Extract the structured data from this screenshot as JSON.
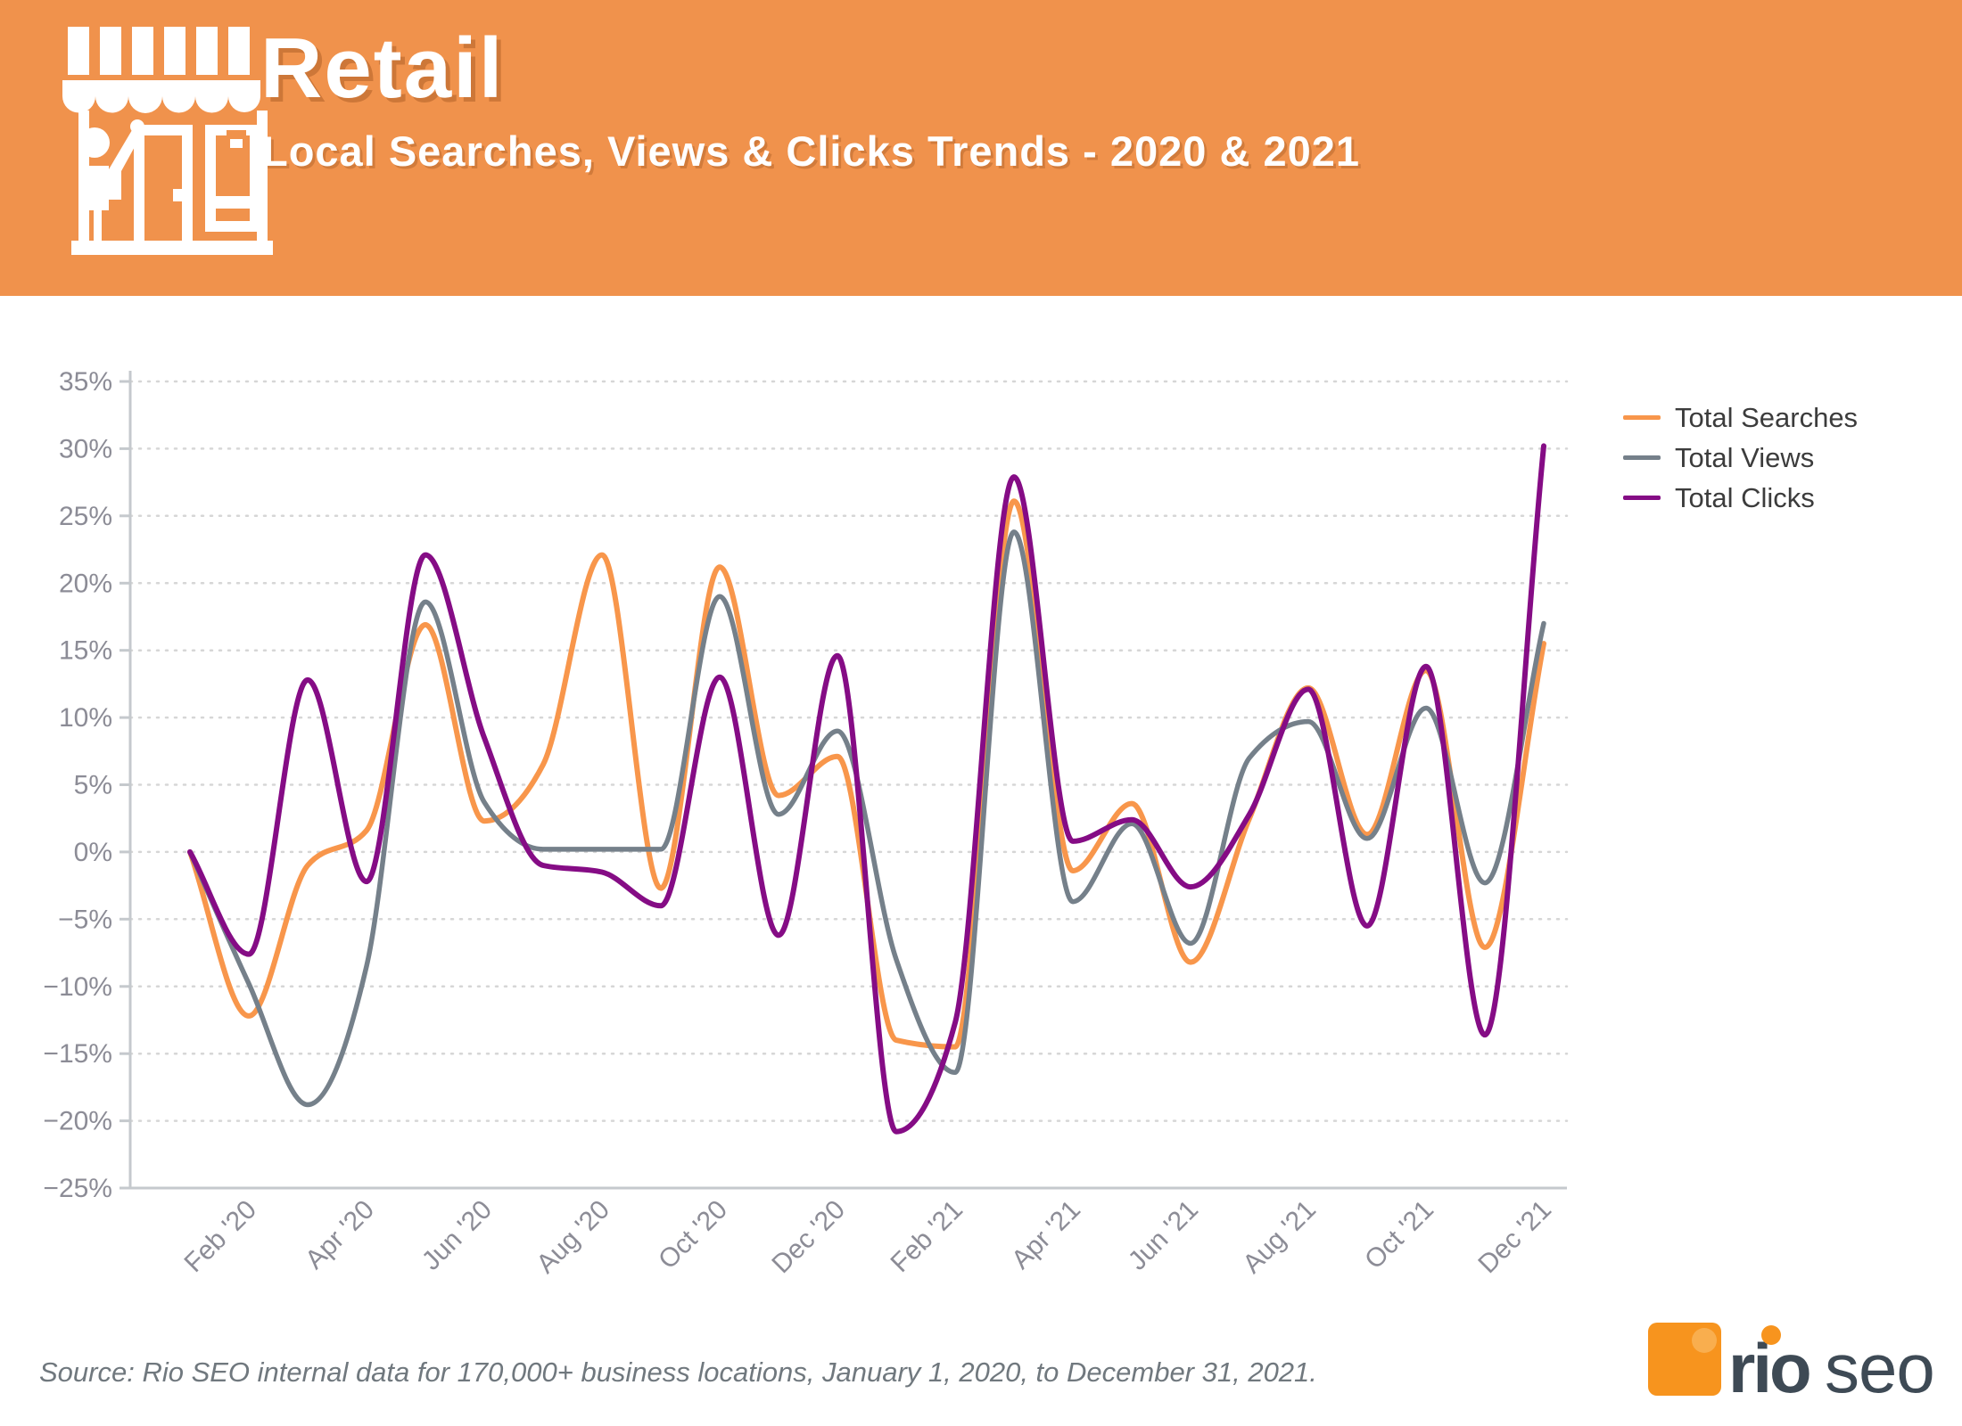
{
  "header": {
    "title": "Retail",
    "subtitle": "Local Searches, Views & Clicks Trends - 2020 & 2021"
  },
  "legend": {
    "position": "right-top"
  },
  "source_note": "Source: Rio SEO internal data for 170,000+ business locations, January 1, 2020, to December 31, 2021.",
  "logo": {
    "text_rio": "rio",
    "text_seo": "seo"
  },
  "icons": {
    "store_icon": "storefront-with-person-icon"
  },
  "colors": {
    "banner_background": "#F0924C",
    "searches_orange": "#F8964B",
    "views_gray": "#75808A",
    "clicks_purple": "#850C85",
    "axis_text": "#8C8C96",
    "grid_line": "#D6D6D6",
    "axis_line": "#C5C9CD",
    "legend_text": "#3C3C3C",
    "source_text": "#70787E",
    "logo_orange": "#F7941E",
    "logo_text": "#3E4A55"
  },
  "chart_data": {
    "type": "line",
    "title": "",
    "xlabel": "",
    "ylabel": "",
    "ylim": [
      -25,
      35
    ],
    "grid": "horizontal-dotted",
    "legend_position": "right-top",
    "x": [
      "Jan '20",
      "Feb '20",
      "Mar '20",
      "Apr '20",
      "May '20",
      "Jun '20",
      "Jul '20",
      "Aug '20",
      "Sep '20",
      "Oct '20",
      "Nov '20",
      "Dec '20",
      "Jan '21",
      "Feb '21",
      "Mar '21",
      "Apr '21",
      "May '21",
      "Jun '21",
      "Jul '21",
      "Aug '21",
      "Sep '21",
      "Oct '21",
      "Nov '21",
      "Dec '21"
    ],
    "x_tick_labels": [
      "Feb '20",
      "Apr '20",
      "Jun '20",
      "Aug '20",
      "Oct '20",
      "Dec '20",
      "Feb '21",
      "Apr '21",
      "Jun '21",
      "Aug '21",
      "Oct '21",
      "Dec '21"
    ],
    "y_tick_labels": [
      "35%",
      "30%",
      "25%",
      "20%",
      "15%",
      "10%",
      "5%",
      "0%",
      "−5%",
      "−10%",
      "−15%",
      "−20%",
      "−25%"
    ],
    "series": [
      {
        "name": "Total Searches",
        "color": "#F8964B",
        "values": [
          0,
          -12.2,
          -1.0,
          1.6,
          16.9,
          2.3,
          6.5,
          22.1,
          -2.7,
          21.2,
          4.2,
          7.1,
          -14.0,
          -14.5,
          26.1,
          -1.4,
          3.6,
          -8.2,
          2.5,
          12.2,
          1.3,
          13.5,
          -7.1,
          15.5
        ]
      },
      {
        "name": "Total Views",
        "color": "#75808A",
        "values": [
          0,
          -9.8,
          -18.8,
          -8.5,
          18.6,
          3.7,
          0.2,
          0.2,
          0.2,
          19.0,
          2.8,
          9.0,
          -8.0,
          -16.4,
          23.8,
          -3.7,
          2.1,
          -6.8,
          7.0,
          9.7,
          1.0,
          10.7,
          -2.3,
          17.0
        ]
      },
      {
        "name": "Total Clicks",
        "color": "#850C85",
        "values": [
          0,
          -7.6,
          12.8,
          -2.2,
          22.1,
          8.5,
          -1.0,
          -1.5,
          -4.0,
          13.0,
          -6.2,
          14.6,
          -20.8,
          -12.7,
          27.9,
          0.8,
          2.4,
          -2.6,
          2.8,
          12.1,
          -5.5,
          13.8,
          -13.6,
          30.2
        ]
      }
    ]
  }
}
